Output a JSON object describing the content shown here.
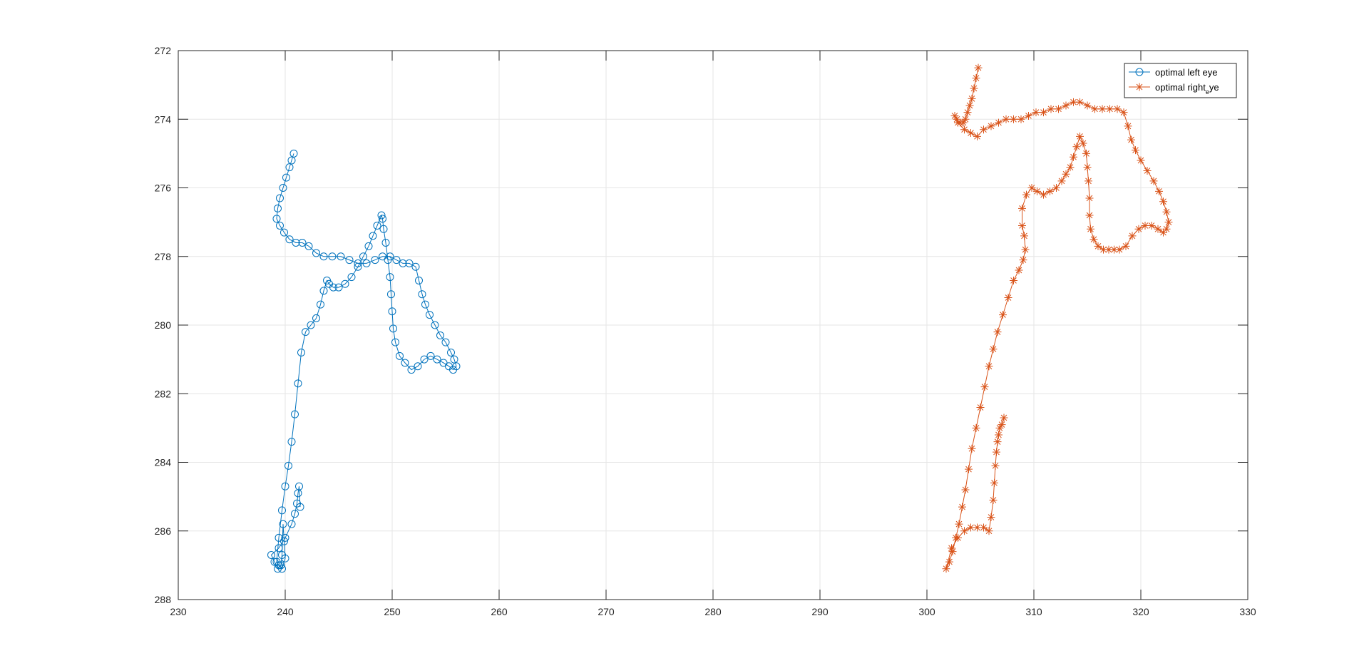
{
  "chart_data": {
    "type": "line",
    "title": "",
    "xlabel": "",
    "ylabel": "",
    "xlim": [
      230,
      330
    ],
    "ylim": [
      272,
      288
    ],
    "y_reversed": true,
    "grid": true,
    "legend_position": "top-right",
    "xticks": [
      "230",
      "240",
      "250",
      "260",
      "270",
      "280",
      "290",
      "300",
      "310",
      "320",
      "330"
    ],
    "yticks": [
      "272",
      "274",
      "276",
      "278",
      "280",
      "282",
      "284",
      "286",
      "288"
    ],
    "series": [
      {
        "name": "optimal left eye",
        "legend_parts": [
          "optimal left eye"
        ],
        "marker": "circle",
        "color": "#0072BD",
        "x": [
          240.8,
          240.6,
          240.4,
          240.1,
          239.8,
          239.5,
          239.3,
          239.2,
          239.5,
          239.9,
          240.4,
          241.0,
          241.6,
          242.2,
          242.9,
          243.6,
          244.4,
          245.2,
          246.0,
          246.8,
          247.6,
          248.4,
          249.1,
          249.8,
          250.4,
          251.0,
          251.6,
          252.2,
          252.5,
          252.8,
          253.1,
          253.5,
          254.0,
          254.5,
          255.0,
          255.5,
          255.8,
          256.0,
          255.7,
          255.3,
          254.8,
          254.2,
          253.6,
          253.0,
          252.4,
          251.8,
          251.2,
          250.7,
          250.3,
          250.1,
          250.0,
          249.9,
          249.8,
          249.6,
          249.4,
          249.2,
          249.1,
          249.0,
          248.6,
          248.2,
          247.8,
          247.3,
          246.8,
          246.2,
          245.6,
          245.0,
          244.5,
          244.1,
          243.9,
          243.6,
          243.3,
          242.9,
          242.4,
          241.9,
          241.5,
          241.2,
          240.9,
          240.6,
          240.3,
          240.0,
          239.7,
          239.4,
          239.2,
          239.4,
          239.7,
          240.0,
          239.9,
          239.8,
          239.7,
          239.6,
          239.3,
          239.0,
          238.7,
          239.4,
          240.0,
          240.6,
          240.9,
          241.1,
          241.2,
          241.3,
          241.4
        ],
        "y": [
          275.0,
          275.2,
          275.4,
          275.7,
          276.0,
          276.3,
          276.6,
          276.9,
          277.1,
          277.3,
          277.5,
          277.6,
          277.6,
          277.7,
          277.9,
          278.0,
          278.0,
          278.0,
          278.1,
          278.2,
          278.2,
          278.1,
          278.0,
          278.0,
          278.1,
          278.2,
          278.2,
          278.3,
          278.7,
          279.1,
          279.4,
          279.7,
          280.0,
          280.3,
          280.5,
          280.8,
          281.0,
          281.2,
          281.3,
          281.2,
          281.1,
          281.0,
          280.9,
          281.0,
          281.2,
          281.3,
          281.1,
          280.9,
          280.5,
          280.1,
          279.6,
          279.1,
          278.6,
          278.1,
          277.6,
          277.2,
          276.9,
          276.8,
          277.1,
          277.4,
          277.7,
          278.0,
          278.3,
          278.6,
          278.8,
          278.9,
          278.9,
          278.8,
          278.7,
          279.0,
          279.4,
          279.8,
          280.0,
          280.2,
          280.8,
          281.7,
          282.6,
          283.4,
          284.1,
          284.7,
          285.4,
          286.2,
          286.9,
          287.0,
          287.1,
          286.8,
          286.3,
          285.8,
          286.7,
          287.0,
          287.1,
          286.9,
          286.7,
          286.5,
          286.2,
          285.8,
          285.5,
          285.2,
          284.9,
          284.7,
          285.3
        ]
      },
      {
        "name": "optimal right_eye",
        "legend_parts": [
          "optimal right",
          "e",
          "ye"
        ],
        "marker": "star",
        "color": "#D95319",
        "x": [
          304.8,
          304.6,
          304.4,
          304.2,
          304.0,
          303.8,
          303.6,
          303.4,
          303.1,
          302.8,
          302.6,
          302.9,
          303.5,
          304.1,
          304.7,
          305.3,
          306.0,
          306.7,
          307.4,
          308.1,
          308.8,
          309.5,
          310.2,
          310.9,
          311.6,
          312.3,
          313.0,
          313.7,
          314.3,
          315.0,
          315.7,
          316.4,
          317.1,
          317.8,
          318.4,
          318.8,
          319.1,
          319.5,
          320.0,
          320.6,
          321.2,
          321.7,
          322.1,
          322.4,
          322.6,
          322.4,
          322.1,
          321.6,
          321.0,
          320.4,
          319.8,
          319.2,
          318.6,
          318.0,
          317.5,
          317.0,
          316.5,
          316.0,
          315.6,
          315.3,
          315.2,
          315.2,
          315.1,
          315.0,
          314.9,
          314.6,
          314.3,
          314.0,
          313.7,
          313.4,
          313.0,
          312.6,
          312.1,
          311.5,
          310.9,
          310.3,
          309.8,
          309.3,
          308.9,
          308.9,
          309.1,
          309.2,
          309.0,
          308.6,
          308.1,
          307.6,
          307.1,
          306.6,
          306.2,
          305.8,
          305.4,
          305.0,
          304.6,
          304.2,
          303.9,
          303.6,
          303.3,
          303.0,
          302.7,
          302.4,
          302.1,
          301.8,
          302.3,
          302.9,
          303.5,
          304.1,
          304.7,
          305.3,
          305.8,
          306.0,
          306.2,
          306.3,
          306.4,
          306.5,
          306.6,
          306.7,
          306.8,
          307.0,
          307.2
        ],
        "y": [
          272.5,
          272.8,
          273.1,
          273.4,
          273.6,
          273.8,
          274.0,
          274.1,
          274.1,
          274.0,
          273.9,
          274.1,
          274.3,
          274.4,
          274.5,
          274.3,
          274.2,
          274.1,
          274.0,
          274.0,
          274.0,
          273.9,
          273.8,
          273.8,
          273.7,
          273.7,
          273.6,
          273.5,
          273.5,
          273.6,
          273.7,
          273.7,
          273.7,
          273.7,
          273.8,
          274.2,
          274.6,
          274.9,
          275.2,
          275.5,
          275.8,
          276.1,
          276.4,
          276.7,
          277.0,
          277.2,
          277.3,
          277.2,
          277.1,
          277.1,
          277.2,
          277.4,
          277.7,
          277.8,
          277.8,
          277.8,
          277.8,
          277.7,
          277.5,
          277.2,
          276.8,
          276.3,
          275.8,
          275.4,
          275.0,
          274.7,
          274.5,
          274.8,
          275.1,
          275.4,
          275.6,
          275.8,
          276.0,
          276.1,
          276.2,
          276.1,
          276.0,
          276.2,
          276.6,
          277.1,
          277.4,
          277.8,
          278.1,
          278.4,
          278.7,
          279.2,
          279.7,
          280.2,
          280.7,
          281.2,
          281.8,
          282.4,
          283.0,
          283.6,
          284.2,
          284.8,
          285.3,
          285.8,
          286.2,
          286.6,
          286.9,
          287.1,
          286.5,
          286.2,
          286.0,
          285.9,
          285.9,
          285.9,
          286.0,
          285.6,
          285.1,
          284.6,
          284.1,
          283.7,
          283.4,
          283.2,
          283.0,
          282.9,
          282.7
        ]
      }
    ]
  }
}
